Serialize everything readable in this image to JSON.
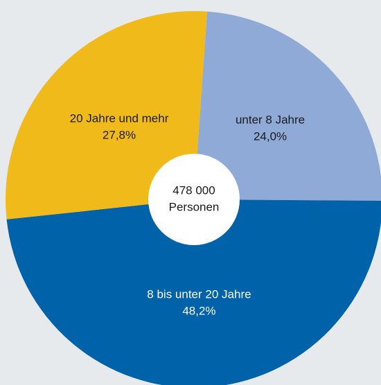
{
  "chart_data": {
    "type": "pie",
    "categories": [
      "unter 8 Jahre",
      "8 bis unter 20 Jahre",
      "20 Jahre und mehr"
    ],
    "values": [
      24.0,
      48.2,
      27.8
    ],
    "value_labels": [
      "24,0%",
      "48,2%",
      "27,8%"
    ],
    "colors": [
      "#8faad6",
      "#0062a8",
      "#f0bb1a"
    ],
    "label_colors": [
      "#1a1a1a",
      "#ffffff",
      "#1a1a1a"
    ],
    "center_text": [
      "478 000",
      "Personen"
    ]
  }
}
